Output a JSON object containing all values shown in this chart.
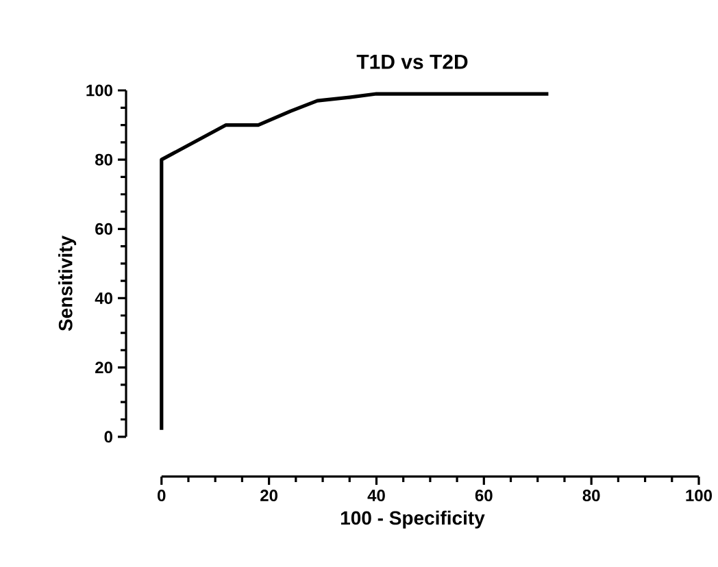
{
  "chart_data": {
    "type": "line",
    "title": "T1D vs T2D",
    "xlabel": "100 - Specificity",
    "ylabel": "Sensitivity",
    "x": [
      0,
      0,
      12,
      18,
      24,
      29,
      35,
      40,
      72
    ],
    "series": [
      {
        "color": "#000000",
        "values": [
          2,
          80,
          90,
          90,
          94,
          97,
          98,
          99,
          99
        ]
      }
    ],
    "xlim": [
      0,
      100
    ],
    "ylim": [
      0,
      100
    ],
    "xticks": [
      0,
      20,
      40,
      60,
      80,
      100
    ],
    "yticks": [
      0,
      20,
      40,
      60,
      80,
      100
    ],
    "grid": false,
    "marker": "none",
    "line_style": "solid"
  }
}
